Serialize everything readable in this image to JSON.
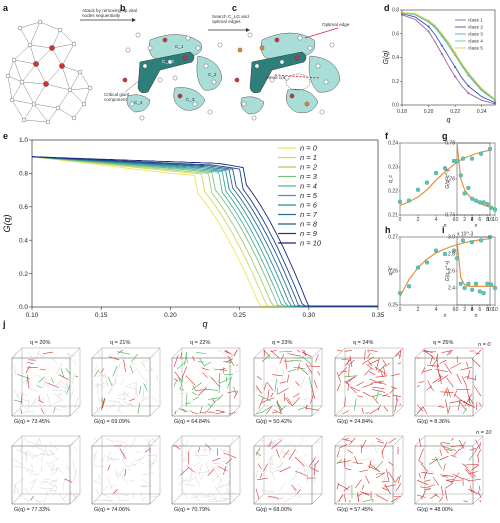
{
  "panel_labels": {
    "a": "a",
    "b": "b",
    "c": "c",
    "d": "d",
    "e": "e",
    "f": "f",
    "g": "g",
    "h": "h",
    "i": "i",
    "j": "j"
  },
  "diagram": {
    "arrow1": [
      "Attack by removing up vital",
      "nodes sequentially"
    ],
    "arrow2": [
      "Search C_LG and",
      "optimal edges"
    ],
    "critical": [
      "Critical giant",
      "component"
    ],
    "weak_core": "Weak core",
    "optimal_edge": "Optimal edge",
    "clg": "C_LG",
    "ci": [
      "C_1",
      "C_2",
      "C_3",
      "C_4"
    ]
  },
  "colors": {
    "yellow": "#f2e35a",
    "teal": "#2fa7a0",
    "navy": "#1a237e",
    "orange": "#e8892b",
    "dot": "#5cc6b6",
    "red": "#d62f2f",
    "green": "#38b24a",
    "gray": "#bdbdbd"
  },
  "chart_data": [
    {
      "id": "d",
      "type": "line",
      "ylabel": "G(q)",
      "xlabel": "q",
      "xlim": [
        0.18,
        0.25
      ],
      "ylim": [
        0.0,
        0.8
      ],
      "xticks": [
        0.18,
        0.2,
        0.22,
        0.24
      ],
      "yticks": [
        0.0,
        0.2,
        0.4,
        0.6,
        0.8
      ],
      "x": [
        0.18,
        0.19,
        0.2,
        0.205,
        0.21,
        0.215,
        0.22,
        0.225,
        0.23,
        0.24,
        0.25
      ],
      "series": [
        {
          "name": "class 1",
          "color": "#9c5fa8",
          "values": [
            0.76,
            0.72,
            0.62,
            0.53,
            0.43,
            0.33,
            0.24,
            0.16,
            0.1,
            0.04,
            0.01
          ]
        },
        {
          "name": "class 2",
          "color": "#3b57a6",
          "values": [
            0.77,
            0.74,
            0.66,
            0.59,
            0.5,
            0.41,
            0.32,
            0.23,
            0.16,
            0.07,
            0.02
          ]
        },
        {
          "name": "class 3",
          "color": "#43b3c4",
          "values": [
            0.78,
            0.76,
            0.7,
            0.65,
            0.58,
            0.5,
            0.42,
            0.33,
            0.25,
            0.12,
            0.04
          ]
        },
        {
          "name": "class 4",
          "color": "#7ac27c",
          "values": [
            0.78,
            0.76,
            0.71,
            0.66,
            0.59,
            0.52,
            0.43,
            0.34,
            0.26,
            0.13,
            0.05
          ]
        },
        {
          "name": "class 5",
          "color": "#e0c93b",
          "values": [
            0.78,
            0.77,
            0.71,
            0.67,
            0.6,
            0.53,
            0.44,
            0.35,
            0.27,
            0.14,
            0.05
          ]
        }
      ]
    },
    {
      "id": "e",
      "type": "line",
      "ylabel": "G(q)",
      "xlabel": "q",
      "xlim": [
        0.1,
        0.35
      ],
      "ylim": [
        0.0,
        1.0
      ],
      "xticks": [
        0.1,
        0.15,
        0.2,
        0.25,
        0.3,
        0.35
      ],
      "yticks": [
        0.0,
        0.2,
        0.4,
        0.6,
        0.8,
        1.0
      ],
      "series": [
        {
          "name": "n = 0",
          "n": 0
        },
        {
          "name": "n = 1",
          "n": 1
        },
        {
          "name": "n = 2",
          "n": 2
        },
        {
          "name": "n = 3",
          "n": 3
        },
        {
          "name": "n = 4",
          "n": 4
        },
        {
          "name": "n = 5",
          "n": 5
        },
        {
          "name": "n = 6",
          "n": 6
        },
        {
          "name": "n = 7",
          "n": 7
        },
        {
          "name": "n = 8",
          "n": 8
        },
        {
          "name": "n = 9",
          "n": 9
        },
        {
          "name": "n = 10",
          "n": 10
        }
      ],
      "curve_model": {
        "plateau_start": 0.9,
        "plateau_end": [
          0.8,
          0.81,
          0.815,
          0.82,
          0.825,
          0.83,
          0.835,
          0.84,
          0.845,
          0.85,
          0.86
        ],
        "q_c": [
          0.245,
          0.25,
          0.254,
          0.258,
          0.261,
          0.264,
          0.267,
          0.27,
          0.273,
          0.276,
          0.28
        ]
      }
    },
    {
      "id": "f",
      "type": "scatter",
      "ylabel": "q_c",
      "xlabel": "n",
      "xlim": [
        0,
        10
      ],
      "ylim": [
        0.21,
        0.24
      ],
      "xticks": [
        0,
        2,
        4,
        6,
        8,
        10
      ],
      "yticks": [
        0.21,
        0.22,
        0.23,
        0.24
      ],
      "ytick_labels": [
        "0.21",
        "0.22",
        "0.23",
        "0.24"
      ],
      "x": [
        0,
        1,
        2,
        3,
        4,
        5,
        6,
        7,
        8,
        9,
        10
      ],
      "values": [
        0.2155,
        0.216,
        0.2205,
        0.2235,
        0.2275,
        0.2295,
        0.2325,
        0.2335,
        0.2335,
        0.2355,
        0.2375
      ],
      "fit": [
        0.214,
        0.2155,
        0.2175,
        0.2205,
        0.2245,
        0.228,
        0.231,
        0.2335,
        0.235,
        0.2362,
        0.237
      ]
    },
    {
      "id": "g",
      "type": "scatter",
      "ylabel": "G(q_c^-)",
      "xlabel": "n",
      "xlim": [
        0,
        10
      ],
      "ylim": [
        0.74,
        0.78
      ],
      "xticks": [
        0,
        2,
        4,
        6,
        8,
        10
      ],
      "yticks": [
        0.74,
        0.76,
        0.78
      ],
      "ytick_labels": [
        "0.74",
        "0.76",
        "0.78"
      ],
      "x": [
        0,
        1,
        2,
        3,
        4,
        5,
        6,
        7,
        8,
        9,
        10
      ],
      "values": [
        0.77,
        0.762,
        0.752,
        0.755,
        0.749,
        0.748,
        0.747,
        0.747,
        0.746,
        0.744,
        0.743
      ],
      "fit": [
        0.78,
        0.76,
        0.754,
        0.751,
        0.749,
        0.7475,
        0.7465,
        0.7455,
        0.7448,
        0.7442,
        0.7437
      ]
    },
    {
      "id": "h",
      "type": "scatter",
      "ylabel": "q_c'",
      "xlabel": "n",
      "xlim": [
        0,
        10
      ],
      "ylim": [
        0.25,
        0.27
      ],
      "xticks": [
        0,
        2,
        4,
        6,
        8,
        10
      ],
      "yticks": [
        0.25,
        0.26,
        0.27
      ],
      "ytick_labels": [
        "0.25",
        "0.26",
        "0.27"
      ],
      "x": [
        0,
        1,
        2,
        3,
        4,
        5,
        6,
        7,
        8,
        9,
        10
      ],
      "values": [
        0.2535,
        0.2555,
        0.261,
        0.2625,
        0.266,
        0.265,
        0.266,
        0.269,
        0.2685,
        0.269,
        0.27
      ],
      "fit": [
        0.2525,
        0.2575,
        0.261,
        0.2635,
        0.2653,
        0.2665,
        0.2675,
        0.2682,
        0.2688,
        0.2692,
        0.2695
      ]
    },
    {
      "id": "i",
      "type": "scatter",
      "ylabel": "G(q_c^+)",
      "xlabel": "n",
      "xlim": [
        0,
        10
      ],
      "ylim": [
        2.2,
        3.0
      ],
      "exponent": "x 10^-3",
      "xticks": [
        0,
        2,
        4,
        6,
        8,
        10
      ],
      "yticks": [
        2.4,
        2.6,
        2.8,
        3.0
      ],
      "ytick_labels": [
        "2.4",
        "2.6",
        "2.8",
        "3.0"
      ],
      "x": [
        0,
        1,
        2,
        3,
        4,
        5,
        6,
        7,
        8,
        9,
        10
      ],
      "values": [
        2.75,
        2.45,
        2.4,
        2.45,
        2.38,
        2.45,
        2.36,
        2.34,
        2.45,
        2.44,
        2.4
      ],
      "fit": [
        2.95,
        2.52,
        2.44,
        2.42,
        2.42,
        2.42,
        2.42,
        2.42,
        2.42,
        2.42,
        2.42
      ]
    }
  ],
  "panel_j": {
    "q_labels": [
      "q = 20%",
      "q = 21%",
      "q = 22%",
      "q = 23%",
      "q = 24%",
      "q = 25%"
    ],
    "row1_n": "n = 0",
    "row2_n": "n = 10",
    "row1_g": [
      "G(q) = 73.45%",
      "G(q) = 69.09%",
      "G(q) = 64.84%",
      "G(q) = 50.42%",
      "G(q) = 24.84%",
      "G(q) = 8.36%"
    ],
    "row2_g": [
      "G(q) = 77.33%",
      "G(q) = 74.06%",
      "G(q) = 70.79%",
      "G(q) = 68.00%",
      "G(q) = 57.45%",
      "G(q) = 48.00%"
    ],
    "red_density_row1": [
      0.15,
      0.18,
      0.45,
      0.7,
      0.9,
      0.95
    ],
    "green_density_row1": [
      0.12,
      0.18,
      0.45,
      0.2,
      0.1,
      0.05
    ],
    "red_density_row2": [
      0.05,
      0.08,
      0.12,
      0.35,
      0.75,
      0.9
    ],
    "green_density_row2": [
      0.0,
      0.0,
      0.0,
      0.03,
      0.06,
      0.05
    ]
  }
}
